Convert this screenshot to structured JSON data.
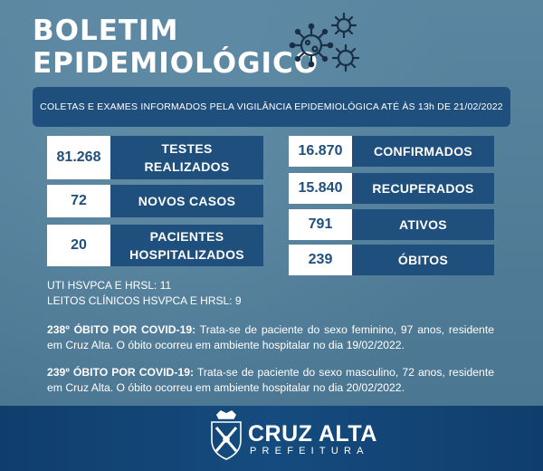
{
  "header": {
    "title_line1": "BOLETIM",
    "title_line2": "EPIDEMIOLÓGICO"
  },
  "banner": {
    "text": "COLETAS E EXAMES INFORMADOS PELA VIGILÂNCIA EPIDEMIOLÓGICA ATÉ ÀS 13h DE 21/02/2022"
  },
  "stats_left": [
    {
      "value": "81.268",
      "label_line1": "TESTES",
      "label_line2": "REALIZADOS"
    },
    {
      "value": "72",
      "label_line1": "NOVOS CASOS",
      "label_line2": ""
    },
    {
      "value": "20",
      "label_line1": "PACIENTES",
      "label_line2": "HOSPITALIZADOS"
    }
  ],
  "stats_right": [
    {
      "value": "16.870",
      "label": "CONFIRMADOS"
    },
    {
      "value": "15.840",
      "label": "RECUPERADOS"
    },
    {
      "value": "791",
      "label": "ATIVOS"
    },
    {
      "value": "239",
      "label": "ÓBITOS"
    }
  ],
  "uti": {
    "line1": "UTI HSVPCA E HRSL: 11",
    "line2": "LEITOS CLÍNICOS HSVPCA E HRSL: 9"
  },
  "deaths": [
    {
      "heading": "238º ÓBITO POR COVID-19:",
      "text": " Trata-se de paciente do sexo feminino, 97 anos, residente em Cruz Alta. O óbito ocorreu em ambiente hospitalar no dia 19/02/2022."
    },
    {
      "heading": "239º ÓBITO POR COVID-19:",
      "text": " Trata-se de paciente do sexo masculino, 72 anos, residente em Cruz Alta. O óbito ocorreu em ambiente hospitalar no dia 20/02/2022."
    }
  ],
  "footer": {
    "brand": "CRUZ ALTA",
    "sub": "PREFEITURA",
    "icon": "coat-of-arms-icon"
  },
  "colors": {
    "background": "#4e7a95",
    "navy": "#1f4f7d",
    "footer": "#154b7e",
    "white": "#ffffff"
  },
  "icons": {
    "virus": "virus-icon"
  }
}
